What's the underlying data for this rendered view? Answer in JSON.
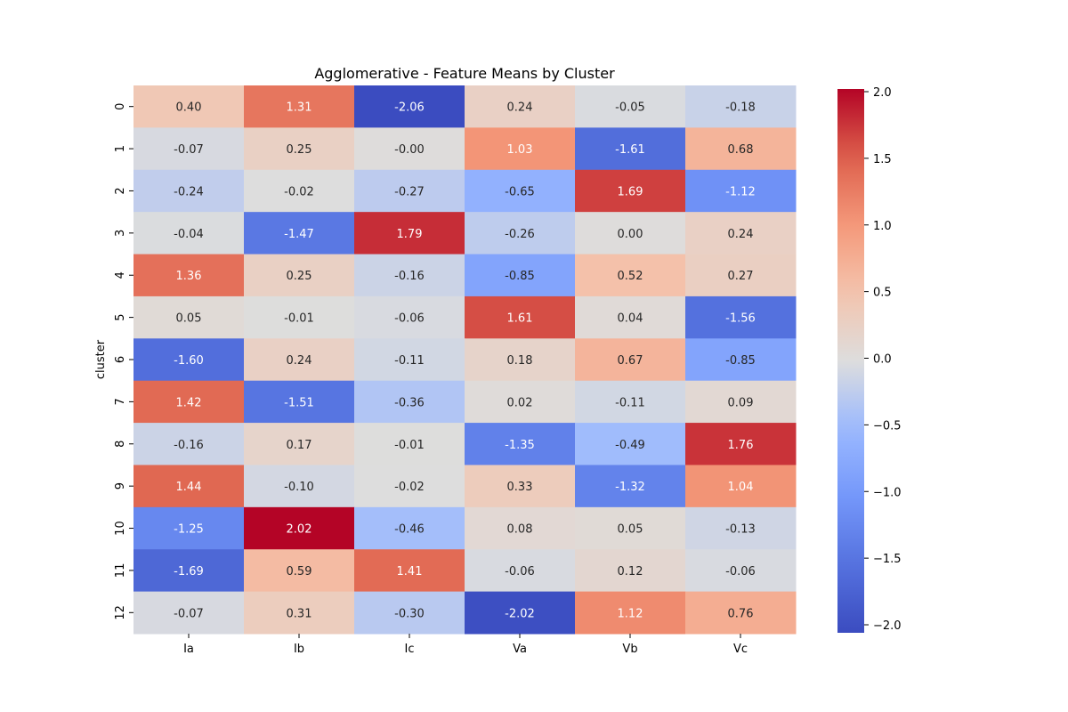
{
  "chart_data": {
    "type": "heatmap",
    "title": "Agglomerative - Feature Means by Cluster",
    "xlabel": "",
    "ylabel": "cluster",
    "x_categories": [
      "Ia",
      "Ib",
      "Ic",
      "Va",
      "Vb",
      "Vc"
    ],
    "y_categories": [
      "0",
      "1",
      "2",
      "3",
      "4",
      "5",
      "6",
      "7",
      "8",
      "9",
      "10",
      "11",
      "12"
    ],
    "values": [
      [
        0.4,
        1.31,
        -2.06,
        0.24,
        -0.05,
        -0.18
      ],
      [
        -0.07,
        0.25,
        -0.0,
        1.03,
        -1.61,
        0.68
      ],
      [
        -0.24,
        -0.02,
        -0.27,
        -0.65,
        1.69,
        -1.12
      ],
      [
        -0.04,
        -1.47,
        1.79,
        -0.26,
        0.0,
        0.24
      ],
      [
        1.36,
        0.25,
        -0.16,
        -0.85,
        0.52,
        0.27
      ],
      [
        0.05,
        -0.01,
        -0.06,
        1.61,
        0.04,
        -1.56
      ],
      [
        -1.6,
        0.24,
        -0.11,
        0.18,
        0.67,
        -0.85
      ],
      [
        1.42,
        -1.51,
        -0.36,
        0.02,
        -0.11,
        0.09
      ],
      [
        -0.16,
        0.17,
        -0.01,
        -1.35,
        -0.49,
        1.76
      ],
      [
        1.44,
        -0.1,
        -0.02,
        0.33,
        -1.32,
        1.04
      ],
      [
        -1.25,
        2.02,
        -0.46,
        0.08,
        0.05,
        -0.13
      ],
      [
        -1.69,
        0.59,
        1.41,
        -0.06,
        0.12,
        -0.06
      ],
      [
        -0.07,
        0.31,
        -0.3,
        -2.02,
        1.12,
        0.76
      ]
    ],
    "value_labels": [
      [
        "0.40",
        "1.31",
        "-2.06",
        "0.24",
        "-0.05",
        "-0.18"
      ],
      [
        "-0.07",
        "0.25",
        "-0.00",
        "1.03",
        "-1.61",
        "0.68"
      ],
      [
        "-0.24",
        "-0.02",
        "-0.27",
        "-0.65",
        "1.69",
        "-1.12"
      ],
      [
        "-0.04",
        "-1.47",
        "1.79",
        "-0.26",
        "0.00",
        "0.24"
      ],
      [
        "1.36",
        "0.25",
        "-0.16",
        "-0.85",
        "0.52",
        "0.27"
      ],
      [
        "0.05",
        "-0.01",
        "-0.06",
        "1.61",
        "0.04",
        "-1.56"
      ],
      [
        "-1.60",
        "0.24",
        "-0.11",
        "0.18",
        "0.67",
        "-0.85"
      ],
      [
        "1.42",
        "-1.51",
        "-0.36",
        "0.02",
        "-0.11",
        "0.09"
      ],
      [
        "-0.16",
        "0.17",
        "-0.01",
        "-1.35",
        "-0.49",
        "1.76"
      ],
      [
        "1.44",
        "-0.10",
        "-0.02",
        "0.33",
        "-1.32",
        "1.04"
      ],
      [
        "-1.25",
        "2.02",
        "-0.46",
        "0.08",
        "0.05",
        "-0.13"
      ],
      [
        "-1.69",
        "0.59",
        "1.41",
        "-0.06",
        "0.12",
        "-0.06"
      ],
      [
        "-0.07",
        "0.31",
        "-0.30",
        "-2.02",
        "1.12",
        "0.76"
      ]
    ],
    "colormap": "coolwarm",
    "colorbar": {
      "range": [
        -2.06,
        2.02
      ],
      "ticks": [
        2.0,
        1.5,
        1.0,
        0.5,
        0.0,
        -0.5,
        -1.0,
        -1.5,
        -2.0
      ],
      "tick_labels": [
        "2.0",
        "1.5",
        "1.0",
        "0.5",
        "0.0",
        "−0.5",
        "−1.0",
        "−1.5",
        "−2.0"
      ]
    },
    "colors": {
      "cold": "#3b4cc0",
      "neutral": "#dddddd",
      "hot": "#b40426",
      "text_dark": "#262626",
      "text_light": "#ffffff"
    }
  }
}
